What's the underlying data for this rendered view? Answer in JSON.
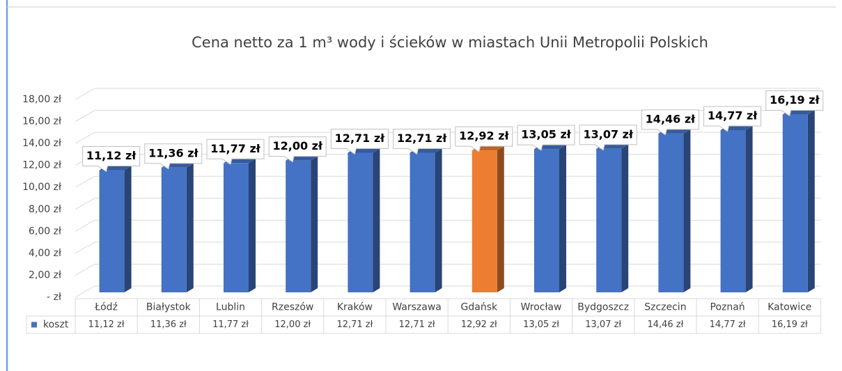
{
  "chart_data": {
    "type": "bar3d",
    "title": "Cena netto za 1 m³ wody i ścieków w miastach Unii Metropolii Polskich",
    "categories": [
      "Łódź",
      "Białystok",
      "Lublin",
      "Rzeszów",
      "Kraków",
      "Warszawa",
      "Gdańsk",
      "Wrocław",
      "Bydgoszcz",
      "Szczecin",
      "Poznań",
      "Katowice"
    ],
    "series": [
      {
        "name": "koszt",
        "color": "#4472c4",
        "colors": [
          "#4472c4",
          "#4472c4",
          "#4472c4",
          "#4472c4",
          "#4472c4",
          "#4472c4",
          "#ed7d31",
          "#4472c4",
          "#4472c4",
          "#4472c4",
          "#4472c4",
          "#4472c4"
        ],
        "values": [
          11.12,
          11.36,
          11.77,
          12.0,
          12.71,
          12.71,
          12.92,
          13.05,
          13.07,
          14.46,
          14.77,
          16.19
        ],
        "value_labels": [
          "11,12 zł",
          "11,36 zł",
          "11,77 zł",
          "12,00 zł",
          "12,71 zł",
          "12,71 zł",
          "12,92 zł",
          "13,05 zł",
          "13,07 zł",
          "14,46 zł",
          "14,77 zł",
          "16,19 zł"
        ]
      }
    ],
    "ylim": [
      0,
      18
    ],
    "yticks": [
      {
        "value": 0,
        "label": "-  zł"
      },
      {
        "value": 2,
        "label": "2,00 zł"
      },
      {
        "value": 4,
        "label": "4,00 zł"
      },
      {
        "value": 6,
        "label": "6,00 zł"
      },
      {
        "value": 8,
        "label": "8,00 zł"
      },
      {
        "value": 10,
        "label": "10,00 zł"
      },
      {
        "value": 12,
        "label": "12,00 zł"
      },
      {
        "value": 14,
        "label": "14,00 zł"
      },
      {
        "value": 16,
        "label": "16,00 zł"
      },
      {
        "value": 18,
        "label": "18,00 zł"
      }
    ],
    "grid": true,
    "data_table": true
  }
}
